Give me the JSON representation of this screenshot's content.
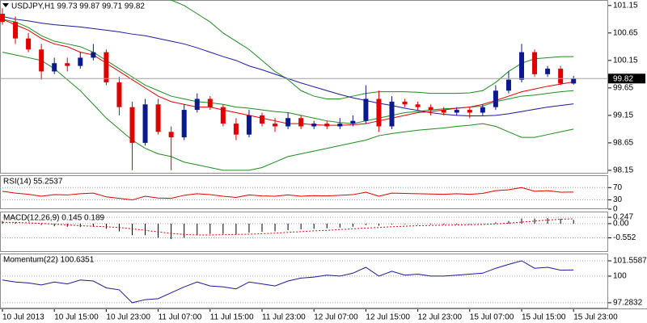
{
  "chart_data": [
    {
      "type": "candlestick",
      "title": "USDJPY,H1  99.73 99.87 99.71 99.82",
      "categories": [
        "10 Jul 2013",
        null,
        null,
        null,
        "10 Jul 15:00",
        null,
        null,
        null,
        "10 Jul 23:00",
        null,
        null,
        null,
        "11 Jul 07:00",
        null,
        null,
        null,
        "11 Jul 15:00",
        null,
        null,
        null,
        "11 Jul 23:00",
        null,
        null,
        null,
        "12 Jul 07:00",
        null,
        null,
        null,
        "12 Jul 15:00",
        null,
        null,
        null,
        "12 Jul 23:00",
        null,
        null,
        null,
        "15 Jul 07:00",
        null,
        null,
        null,
        "15 Jul 15:00",
        null,
        null,
        null,
        "15 Jul 23:00"
      ],
      "open": [
        101.0,
        100.85,
        100.55,
        100.35,
        99.95,
        100.1,
        100.05,
        100.2,
        100.3,
        99.75,
        99.3,
        98.65,
        99.35,
        98.85,
        98.75,
        99.25,
        99.45,
        99.3,
        99.0,
        98.8,
        99.15,
        99.0,
        98.95,
        99.1,
        98.95,
        99.0,
        98.95,
        99.0,
        99.05,
        99.45,
        98.95,
        99.4,
        99.35,
        99.3,
        99.25,
        99.2,
        99.25,
        99.2,
        99.3,
        99.6,
        99.8,
        100.3,
        99.9,
        100.0,
        99.73
      ],
      "high": [
        101.1,
        100.95,
        100.65,
        100.45,
        100.2,
        100.2,
        100.3,
        100.45,
        100.35,
        99.85,
        99.4,
        99.45,
        99.45,
        98.95,
        99.35,
        99.55,
        99.5,
        99.35,
        99.1,
        99.25,
        99.2,
        99.1,
        99.2,
        99.15,
        99.05,
        99.05,
        99.1,
        99.15,
        99.7,
        99.6,
        99.5,
        99.45,
        99.4,
        99.35,
        99.3,
        99.3,
        99.3,
        99.35,
        99.7,
        99.95,
        100.45,
        100.35,
        100.05,
        100.05,
        99.87
      ],
      "low": [
        100.8,
        100.45,
        100.3,
        99.8,
        99.9,
        99.95,
        100.0,
        100.15,
        99.7,
        99.15,
        98.15,
        98.6,
        98.8,
        98.15,
        98.7,
        99.2,
        99.25,
        98.95,
        98.7,
        98.75,
        98.95,
        98.85,
        98.9,
        98.9,
        98.9,
        98.9,
        98.9,
        98.95,
        99.0,
        98.85,
        98.9,
        99.3,
        99.25,
        99.15,
        99.15,
        99.15,
        99.1,
        99.15,
        99.25,
        99.55,
        99.75,
        99.85,
        99.85,
        99.7,
        99.71
      ],
      "close": [
        100.85,
        100.55,
        100.35,
        99.95,
        100.1,
        100.05,
        100.2,
        100.3,
        99.75,
        99.3,
        98.65,
        99.35,
        98.85,
        98.75,
        99.25,
        99.45,
        99.3,
        99.0,
        98.8,
        99.15,
        99.0,
        98.95,
        99.1,
        98.95,
        99.0,
        98.95,
        99.0,
        99.05,
        99.45,
        98.95,
        99.4,
        99.35,
        99.3,
        99.25,
        99.2,
        99.25,
        99.2,
        99.3,
        99.6,
        99.8,
        100.3,
        99.9,
        100.0,
        99.73,
        99.82
      ],
      "up_color": "#0a1a8c",
      "down_color": "#e00000",
      "overlays": [
        {
          "color": "#1f8a1f",
          "values": [
            101.9,
            101.9,
            101.85,
            101.8,
            101.75,
            101.7,
            101.65,
            101.6,
            101.5,
            101.45,
            101.4,
            101.35,
            101.3,
            101.25,
            101.15,
            101.0,
            100.85,
            100.65,
            100.5,
            100.35,
            100.15,
            99.95,
            99.8,
            99.6,
            99.5,
            99.45,
            99.45,
            99.5,
            99.55,
            99.58,
            99.58,
            99.58,
            99.57,
            99.55,
            99.55,
            99.55,
            99.56,
            99.6,
            99.75,
            99.95,
            100.1,
            100.18,
            100.2,
            100.22,
            100.22
          ]
        },
        {
          "color": "#1f8a1f",
          "values": [
            100.9,
            100.85,
            100.75,
            100.6,
            100.5,
            100.45,
            100.4,
            100.3,
            100.15,
            100.0,
            99.85,
            99.7,
            99.6,
            99.5,
            99.45,
            99.4,
            99.38,
            99.35,
            99.3,
            99.28,
            99.25,
            99.22,
            99.2,
            99.15,
            99.1,
            99.05,
            99.02,
            99.0,
            99.05,
            99.1,
            99.15,
            99.2,
            99.22,
            99.25,
            99.27,
            99.28,
            99.3,
            99.32,
            99.4,
            99.45,
            99.5,
            99.52,
            99.55,
            99.58,
            99.6
          ]
        },
        {
          "color": "#1f8a1f",
          "values": [
            100.3,
            100.25,
            100.2,
            100.15,
            100.0,
            99.8,
            99.6,
            99.35,
            99.1,
            98.9,
            98.7,
            98.55,
            98.45,
            98.4,
            98.3,
            98.25,
            98.2,
            98.15,
            98.15,
            98.15,
            98.2,
            98.3,
            98.4,
            98.45,
            98.5,
            98.55,
            98.6,
            98.65,
            98.7,
            98.78,
            98.82,
            98.85,
            98.88,
            98.9,
            98.92,
            98.95,
            98.97,
            99.0,
            98.95,
            98.85,
            98.75,
            98.75,
            98.8,
            98.85,
            98.9
          ]
        },
        {
          "color": "#1a1a99",
          "values": [
            100.95,
            100.9,
            100.87,
            100.83,
            100.8,
            100.78,
            100.76,
            100.73,
            100.7,
            100.67,
            100.63,
            100.6,
            100.55,
            100.5,
            100.45,
            100.38,
            100.3,
            100.22,
            100.15,
            100.05,
            99.98,
            99.9,
            99.82,
            99.74,
            99.67,
            99.6,
            99.53,
            99.47,
            99.42,
            99.37,
            99.33,
            99.28,
            99.24,
            99.2,
            99.17,
            99.15,
            99.14,
            99.14,
            99.15,
            99.18,
            99.22,
            99.26,
            99.3,
            99.33,
            99.36
          ]
        },
        {
          "color": "#e00000",
          "values": [
            100.9,
            100.8,
            100.7,
            100.55,
            100.45,
            100.4,
            100.3,
            100.25,
            100.1,
            99.95,
            99.8,
            99.65,
            99.5,
            99.4,
            99.35,
            99.3,
            99.3,
            99.25,
            99.2,
            99.15,
            99.1,
            99.05,
            99.0,
            99.0,
            98.98,
            98.97,
            98.97,
            98.98,
            99.0,
            99.05,
            99.1,
            99.15,
            99.2,
            99.22,
            99.25,
            99.28,
            99.3,
            99.35,
            99.42,
            99.5,
            99.58,
            99.63,
            99.68,
            99.72,
            99.76
          ]
        }
      ],
      "price_line": 99.82,
      "ylim": [
        98.09,
        101.25
      ],
      "yticks": [
        101.15,
        100.65,
        100.15,
        99.65,
        99.15,
        98.65,
        98.15
      ],
      "grid": false
    },
    {
      "type": "line",
      "title": "RSI(14) 55.2537",
      "color": "#e00000",
      "values": [
        58,
        52,
        48,
        42,
        47,
        46,
        50,
        52,
        40,
        35,
        30,
        42,
        36,
        35,
        45,
        50,
        47,
        42,
        38,
        46,
        43,
        42,
        46,
        42,
        44,
        43,
        45,
        47,
        55,
        42,
        52,
        51,
        50,
        49,
        48,
        50,
        48,
        51,
        60,
        63,
        70,
        58,
        60,
        55,
        55.2537
      ],
      "ylim": [
        0,
        110
      ],
      "yticks": [
        70,
        30,
        0
      ],
      "grid": true
    },
    {
      "type": "macd",
      "title": "MACD(12,26,9) 0.145 0.189",
      "color": "#000000",
      "signal_color": "#e00000",
      "values": [
        0.1,
        0.05,
        0,
        -0.05,
        -0.1,
        -0.12,
        -0.13,
        -0.12,
        -0.2,
        -0.3,
        -0.45,
        -0.45,
        -0.55,
        -0.6,
        -0.55,
        -0.45,
        -0.4,
        -0.4,
        -0.42,
        -0.35,
        -0.32,
        -0.3,
        -0.25,
        -0.22,
        -0.2,
        -0.18,
        -0.15,
        -0.12,
        -0.05,
        -0.08,
        -0.03,
        -0.02,
        -0.02,
        -0.03,
        -0.04,
        -0.03,
        -0.02,
        0.0,
        0.05,
        0.1,
        0.2,
        0.2,
        0.22,
        0.19,
        0.145
      ],
      "signal": [
        0.05,
        0.05,
        0.03,
        0.01,
        -0.02,
        -0.05,
        -0.08,
        -0.1,
        -0.12,
        -0.15,
        -0.2,
        -0.26,
        -0.32,
        -0.38,
        -0.42,
        -0.44,
        -0.44,
        -0.43,
        -0.42,
        -0.41,
        -0.39,
        -0.37,
        -0.34,
        -0.31,
        -0.28,
        -0.26,
        -0.23,
        -0.2,
        -0.17,
        -0.15,
        -0.12,
        -0.1,
        -0.08,
        -0.07,
        -0.06,
        -0.05,
        -0.04,
        -0.03,
        -0.01,
        0.02,
        0.06,
        0.1,
        0.14,
        0.17,
        0.189
      ],
      "ylim": [
        -1.1,
        0.47
      ],
      "yticks": [
        0.247,
        {
          "value": 0,
          "label": "0.00"
        },
        -0.552
      ],
      "grid": true
    },
    {
      "type": "line",
      "title": "Momentum(22) 100.6351",
      "color": "#1a1a99",
      "values": [
        99.6,
        99.4,
        99.3,
        99.1,
        99.4,
        99.2,
        99.6,
        99.5,
        98.8,
        98.6,
        97.2832,
        97.6,
        97.7,
        98.3,
        98.9,
        99.4,
        99.0,
        98.9,
        98.7,
        99.4,
        99.2,
        99.0,
        99.5,
        99.8,
        99.9,
        100.1,
        100.0,
        100.3,
        100.9,
        100.0,
        100.5,
        100.1,
        100.2,
        100.0,
        100.0,
        100.1,
        100.2,
        100.3,
        100.8,
        101.2,
        101.5587,
        100.8,
        100.9,
        100.6,
        100.6351
      ],
      "ylim": [
        96.7,
        102.3
      ],
      "yticks": [
        101.5587,
        100,
        97.2832
      ],
      "grid": true
    }
  ]
}
